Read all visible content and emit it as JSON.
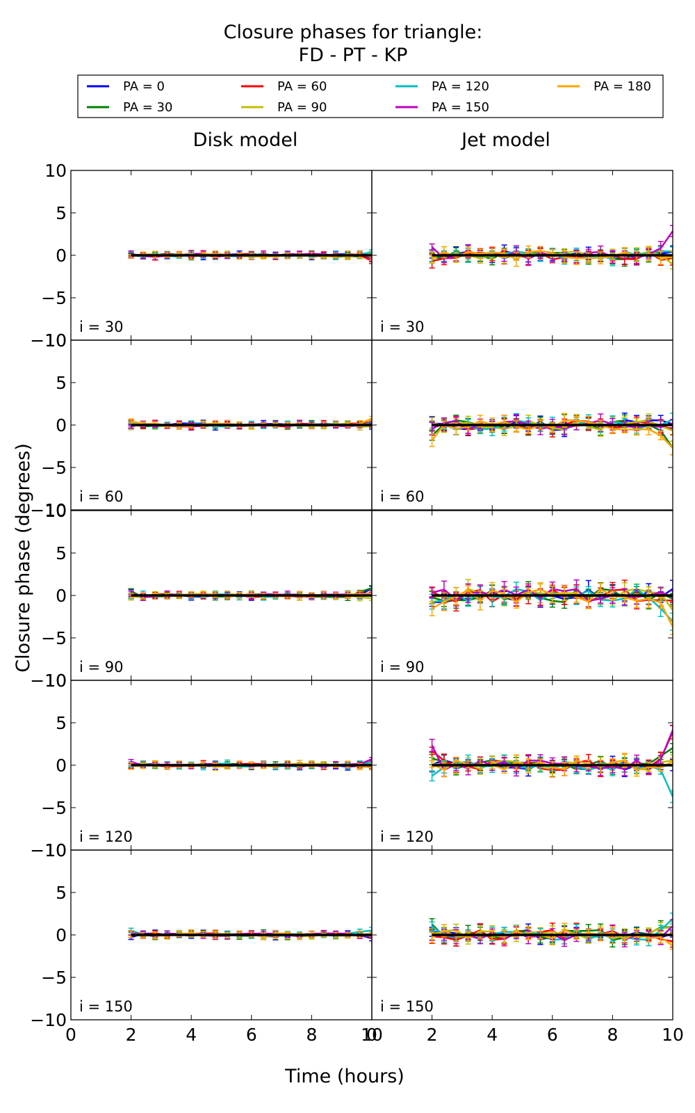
{
  "chart_data": {
    "type": "line",
    "title_line1": "Closure phases for triangle:",
    "title_line2": "FD - PT - KP",
    "xlabel": "Time (hours)",
    "ylabel": "Closure phase (degrees)",
    "column_titles": [
      "Disk model",
      "Jet model"
    ],
    "row_labels": [
      "i = 30",
      "i = 60",
      "i = 90",
      "i = 120",
      "i = 150"
    ],
    "xlim": [
      0,
      10
    ],
    "ylim": [
      -10,
      10
    ],
    "x_ticks": [
      "0",
      "2",
      "4",
      "6",
      "8",
      "10"
    ],
    "y_ticks": [
      "10",
      "5",
      "0",
      "−5",
      "−10"
    ],
    "x_values": [
      2.0,
      2.4,
      2.8,
      3.2,
      3.6,
      4.0,
      4.4,
      4.8,
      5.2,
      5.6,
      6.0,
      6.4,
      6.8,
      7.2,
      7.6,
      8.0,
      8.4,
      8.8,
      9.2,
      9.6,
      10.0
    ],
    "legend": [
      {
        "label": "PA = 0",
        "color": "#0000ff"
      },
      {
        "label": "PA = 30",
        "color": "#008000"
      },
      {
        "label": "PA = 60",
        "color": "#ff0000"
      },
      {
        "label": "PA = 90",
        "color": "#bfbf00"
      },
      {
        "label": "PA = 120",
        "color": "#00bfbf"
      },
      {
        "label": "PA = 150",
        "color": "#bf00bf"
      },
      {
        "label": "PA = 180",
        "color": "#ffa500"
      }
    ],
    "reference_line": {
      "y": 0,
      "color": "#000000"
    },
    "panels": [
      {
        "model": "Disk model",
        "incl": "i = 30",
        "noise": 0.2,
        "err": 0.3,
        "edge": [
          -0.2,
          0.0,
          -0.5,
          0.0,
          0.3,
          0.0,
          -0.1
        ]
      },
      {
        "model": "Jet model",
        "incl": "i = 30",
        "noise": 0.5,
        "err": 0.6,
        "edge": [
          0.6,
          0.3,
          -0.4,
          -1.5,
          0.5,
          2.8,
          0.0
        ]
      },
      {
        "model": "Disk model",
        "incl": "i = 60",
        "noise": 0.2,
        "err": 0.3,
        "edge": [
          0.0,
          0.1,
          0.2,
          -0.2,
          0.3,
          0.0,
          0.6
        ]
      },
      {
        "model": "Jet model",
        "incl": "i = 60",
        "noise": 0.6,
        "err": 0.6,
        "edge": [
          0.0,
          -2.8,
          -0.5,
          -0.2,
          1.0,
          -0.4,
          -2.6
        ]
      },
      {
        "model": "Disk model",
        "incl": "i = 90",
        "noise": 0.2,
        "err": 0.3,
        "edge": [
          0.8,
          1.0,
          0.0,
          -0.4,
          0.2,
          0.4,
          0.0
        ]
      },
      {
        "model": "Jet model",
        "incl": "i = 90",
        "noise": 0.8,
        "err": 0.8,
        "edge": [
          0.0,
          -0.3,
          0.0,
          -1.5,
          -2.5,
          0.2,
          -3.8
        ]
      },
      {
        "model": "Disk model",
        "incl": "i = 120",
        "noise": 0.2,
        "err": 0.3,
        "edge": [
          0.0,
          0.2,
          -0.4,
          0.0,
          0.5,
          0.6,
          0.0
        ]
      },
      {
        "model": "Jet model",
        "incl": "i = 120",
        "noise": 0.6,
        "err": 0.6,
        "edge": [
          0.0,
          1.8,
          3.5,
          0.2,
          -3.2,
          4.0,
          0.0
        ]
      },
      {
        "model": "Disk model",
        "incl": "i = 150",
        "noise": 0.2,
        "err": 0.3,
        "edge": [
          -0.5,
          0.1,
          0.0,
          0.0,
          0.7,
          0.0,
          0.2
        ]
      },
      {
        "model": "Jet model",
        "incl": "i = 150",
        "noise": 0.6,
        "err": 0.6,
        "edge": [
          0.3,
          1.5,
          -0.4,
          0.8,
          2.2,
          0.5,
          -1.5
        ]
      }
    ]
  }
}
